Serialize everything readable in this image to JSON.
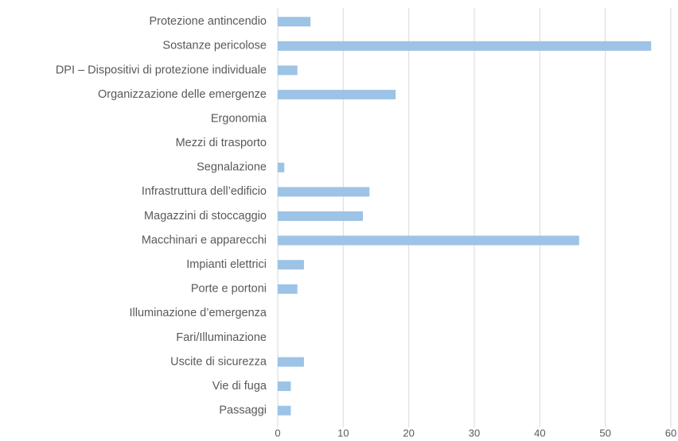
{
  "chart_data": {
    "type": "barh",
    "categories": [
      "Protezione antincendio",
      "Sostanze pericolose",
      "DPI – Dispositivi di protezione individuale",
      "Organizzazione delle emergenze",
      "Ergonomia",
      "Mezzi di trasporto",
      "Segnalazione",
      "Infrastruttura dell’edificio",
      "Magazzini di stoccaggio",
      "Macchinari e apparecchi",
      "Impianti elettrici",
      "Porte e portoni",
      "Illuminazione d’emergenza",
      "Fari/Illuminazione",
      "Uscite di sicurezza",
      "Vie di fuga",
      "Passaggi"
    ],
    "values": [
      5,
      57,
      3,
      18,
      0,
      0,
      1,
      14,
      13,
      46,
      4,
      3,
      0,
      0,
      4,
      2,
      2
    ],
    "color": "#9dc3e6",
    "xlim": [
      0,
      60
    ],
    "xticks": [
      0,
      10,
      20,
      30,
      40,
      50,
      60
    ],
    "grid": true
  }
}
